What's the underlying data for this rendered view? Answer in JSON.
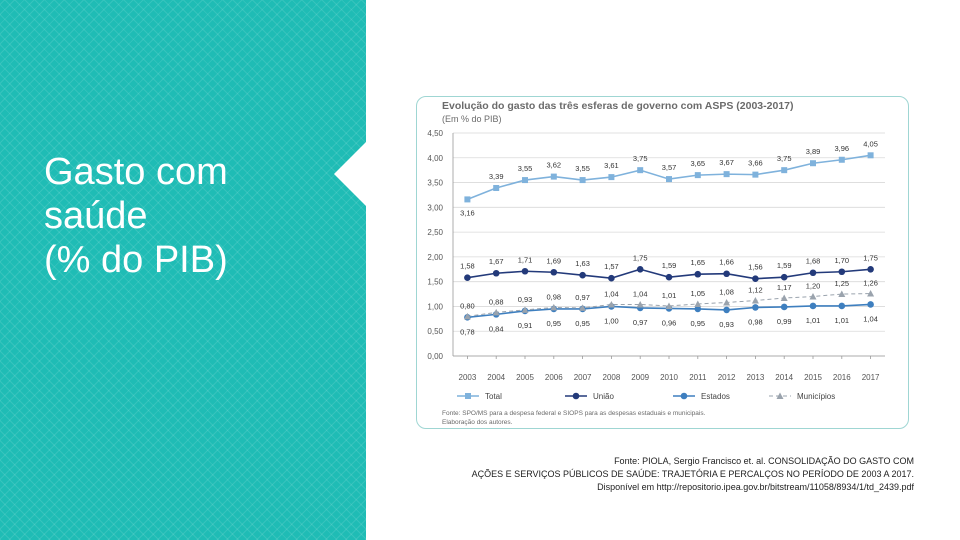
{
  "slide": {
    "title_lines": [
      "Gasto com",
      "saúde",
      "(% do PIB)"
    ],
    "source_lines": [
      "Fonte: PIOLA, Sergio Francisco et. al. CONSOLIDAÇÃO DO GASTO COM",
      "AÇÕES E SERVIÇOS PÚBLICOS DE SAÚDE: TRAJETÓRIA E PERCALÇOS NO PERÍODO DE 2003 A 2017.",
      "Disponível em http://repositorio.ipea.gov.br/bitstream/11058/8934/1/td_2439.pdf"
    ],
    "colors": {
      "teal": "#1fbcb5",
      "frame_border": "#9fd6d3"
    }
  },
  "chart_data": {
    "type": "line",
    "title": "Evolução do gasto das três esferas de governo com ASPS (2003-2017)",
    "subtitle": "(Em % do PIB)",
    "x": [
      "2003",
      "2004",
      "2005",
      "2006",
      "2007",
      "2008",
      "2009",
      "2010",
      "2011",
      "2012",
      "2013",
      "2014",
      "2015",
      "2016",
      "2017"
    ],
    "ylim": [
      0,
      4.5
    ],
    "yticks": [
      "0,00",
      "0,50",
      "1,00",
      "1,50",
      "2,00",
      "2,50",
      "3,00",
      "3,50",
      "4,00",
      "4,50"
    ],
    "legend_position": "bottom",
    "series": [
      {
        "name": "Total",
        "color": "#7fb2dc",
        "marker": "square",
        "dash": false,
        "values": [
          3.16,
          3.39,
          3.55,
          3.62,
          3.55,
          3.61,
          3.75,
          3.57,
          3.65,
          3.67,
          3.66,
          3.75,
          3.89,
          3.96,
          4.05
        ],
        "labels": [
          "3,16",
          "3,39",
          "3,55",
          "3,62",
          "3,55",
          "3,61",
          "3,75",
          "3,57",
          "3,65",
          "3,67",
          "3,66",
          "3,75",
          "3,89",
          "3,96",
          "4,05"
        ]
      },
      {
        "name": "União",
        "color": "#233a7a",
        "marker": "circle",
        "dash": false,
        "values": [
          1.58,
          1.67,
          1.71,
          1.69,
          1.63,
          1.57,
          1.75,
          1.59,
          1.65,
          1.66,
          1.56,
          1.59,
          1.68,
          1.7,
          1.75
        ],
        "labels": [
          "1,58",
          "1,67",
          "1,71",
          "1,69",
          "1,63",
          "1,57",
          "1,75",
          "1,59",
          "1,65",
          "1,66",
          "1,56",
          "1,59",
          "1,68",
          "1,70",
          "1,75"
        ]
      },
      {
        "name": "Estados",
        "color": "#3e7fbf",
        "marker": "circle",
        "dash": false,
        "values": [
          0.78,
          0.84,
          0.91,
          0.95,
          0.95,
          1.0,
          0.97,
          0.96,
          0.95,
          0.93,
          0.98,
          0.99,
          1.01,
          1.01,
          1.04
        ],
        "labels": [
          "0,78",
          "0,84",
          "0,91",
          "0,95",
          "0,95",
          "1,00",
          "0,97",
          "0,96",
          "0,95",
          "0,93",
          "0,98",
          "0,99",
          "1,01",
          "1,01",
          "1,04"
        ]
      },
      {
        "name": "Municípios",
        "color": "#9aa3ad",
        "marker": "triangle",
        "dash": true,
        "values": [
          0.8,
          0.88,
          0.93,
          0.98,
          0.97,
          1.04,
          1.04,
          1.01,
          1.05,
          1.08,
          1.12,
          1.17,
          1.2,
          1.25,
          1.26
        ],
        "labels": [
          "0,80",
          "0,88",
          "0,93",
          "0,98",
          "0,97",
          "1,04",
          "1,04",
          "1,01",
          "1,05",
          "1,08",
          "1,12",
          "1,17",
          "1,20",
          "1,25",
          "1,26"
        ]
      }
    ],
    "footnote_lines": [
      "Fonte: SPO/MS para a despesa federal e SIOPS para as despesas estaduais e municipais.",
      "Elaboração dos autores."
    ]
  }
}
